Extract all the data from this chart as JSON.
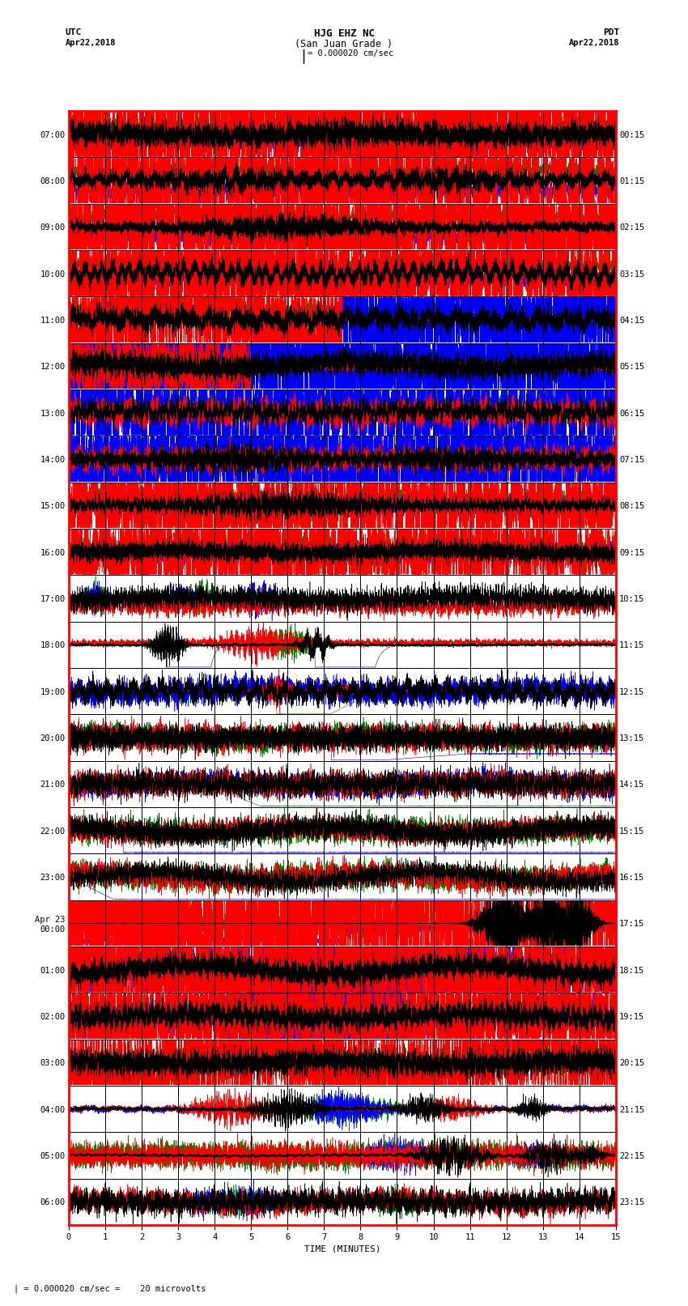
{
  "title_line1": "HJG EHZ NC",
  "title_line2": "(San Juan Grade )",
  "title_line3": "I = 0.000020 cm/sec",
  "label_utc": "UTC",
  "label_pdt": "PDT",
  "label_date_left": "Apr22,2018",
  "label_date_right": "Apr22,2018",
  "xlabel": "TIME (MINUTES)",
  "bottom_label": "| = 0.000020 cm/sec =    20 microvolts",
  "left_times": [
    "07:00",
    "08:00",
    "09:00",
    "10:00",
    "11:00",
    "12:00",
    "13:00",
    "14:00",
    "15:00",
    "16:00",
    "17:00",
    "18:00",
    "19:00",
    "20:00",
    "21:00",
    "22:00",
    "23:00",
    "Apr 23\n00:00",
    "01:00",
    "02:00",
    "03:00",
    "04:00",
    "05:00",
    "06:00"
  ],
  "right_times": [
    "00:15",
    "01:15",
    "02:15",
    "03:15",
    "04:15",
    "05:15",
    "06:15",
    "07:15",
    "08:15",
    "09:15",
    "10:15",
    "11:15",
    "12:15",
    "13:15",
    "14:15",
    "15:15",
    "16:15",
    "17:15",
    "18:15",
    "19:15",
    "20:15",
    "21:15",
    "22:15",
    "23:15"
  ],
  "n_rows": 24,
  "minutes_per_row": 15,
  "background_color": "#ffffff",
  "grid_color": "#000000",
  "colors": {
    "black": "#000000",
    "red": "#ff0000",
    "blue": "#0000ff",
    "green": "#008000"
  },
  "title_fontsize": 9,
  "tick_fontsize": 7.5,
  "label_fontsize": 8,
  "fig_width": 8.5,
  "fig_height": 16.13
}
